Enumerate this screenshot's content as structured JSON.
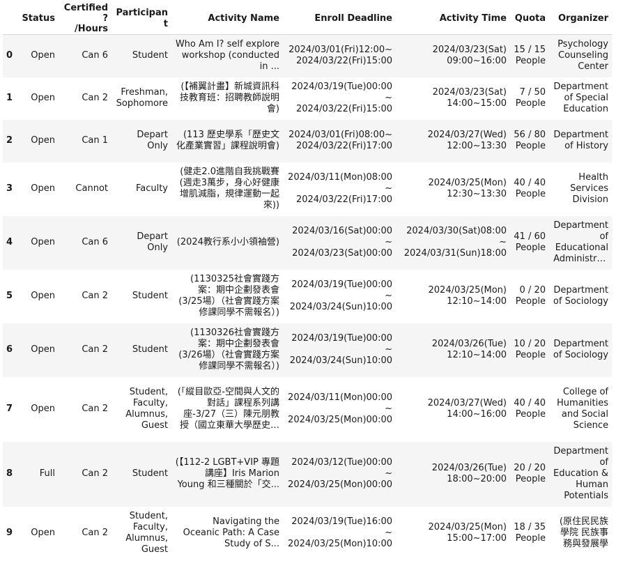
{
  "columns": [
    "",
    "Status",
    "Certified?\n/Hours",
    "Participant",
    "Activity Name",
    "Enroll Deadline",
    "Activity Time",
    "Quota",
    "Organizer"
  ],
  "rows": [
    {
      "idx": "0",
      "status": "Open",
      "cert": "Can 6",
      "participant": "Student",
      "activity": "Who Am I? self explore workshop (conducted in ...",
      "enroll": "2024/03/01(Fri)12:00~ 2024/03/22(Fri)15:00",
      "time": "2024/03/23(Sat) 09:00~16:00",
      "quota": "15 / 15 People",
      "organizer": "Psychology Counseling Center"
    },
    {
      "idx": "1",
      "status": "Open",
      "cert": "Can 2",
      "participant": "Freshman, Sophomore",
      "activity": "(【補翼計畫】新城資訊科技教育班：招聘教師說明會)",
      "enroll": "2024/03/19(Tue)00:00~ 2024/03/22(Fri)15:00",
      "time": "2024/03/23(Sat) 14:00~15:00",
      "quota": "7 / 50 People",
      "organizer": "Department of Special Education"
    },
    {
      "idx": "2",
      "status": "Open",
      "cert": "Can 1",
      "participant": "Depart Only",
      "activity": "(113 歷史學系「歷史文化產業實習」課程說明會)",
      "enroll": "2024/03/01(Fri)08:00~ 2024/03/22(Fri)17:00",
      "time": "2024/03/27(Wed) 12:00~13:30",
      "quota": "56 / 80 People",
      "organizer": "Department of History"
    },
    {
      "idx": "3",
      "status": "Open",
      "cert": "Cannot",
      "participant": "Faculty",
      "activity": "(健走2.0進階自我挑戰賽(週走3萬步，身心好健康增肌減脂，規律運動一起來))",
      "enroll": "2024/03/11(Mon)08:00~ 2024/03/22(Fri)17:00",
      "time": "2024/03/25(Mon) 12:30~13:30",
      "quota": "40 / 40 People",
      "organizer": "Health Services Division"
    },
    {
      "idx": "4",
      "status": "Open",
      "cert": "Can 6",
      "participant": "Depart Only",
      "activity": "(2024教行系小小領袖營)",
      "enroll": "2024/03/16(Sat)00:00~ 2024/03/23(Sat)00:00",
      "time": "2024/03/30(Sat)08:00~ 2024/03/31(Sun)18:00",
      "quota": "41 / 60 People",
      "organizer": "Department of Educational Administration and M..."
    },
    {
      "idx": "5",
      "status": "Open",
      "cert": "Can 2",
      "participant": "Student",
      "activity": "(1130325社會實踐方案：期中企劃發表會(3/25場）（社會實踐方案修課同學不需報名）)",
      "enroll": "2024/03/19(Tue)00:00~ 2024/03/24(Sun)10:00",
      "time": "2024/03/25(Mon) 12:10~14:00",
      "quota": "0 / 20 People",
      "organizer": "Department of Sociology"
    },
    {
      "idx": "6",
      "status": "Open",
      "cert": "Can 2",
      "participant": "Student",
      "activity": "(1130326社會實踐方案：期中企劃發表會(3/26場）（社會實踐方案修課同學不需報名）)",
      "enroll": "2024/03/19(Tue)00:00~ 2024/03/24(Sun)10:00",
      "time": "2024/03/26(Tue) 12:10~14:00",
      "quota": "10 / 20 People",
      "organizer": "Department of Sociology"
    },
    {
      "idx": "7",
      "status": "Open",
      "cert": "Can 2",
      "participant": "Student, Faculty, Alumnus, Guest",
      "activity": "(「縱目歐亞-空間與人文的對話」課程系列講座-3/27（三）陳元朋教授（國立東華大學歷史學系...",
      "enroll": "2024/03/11(Mon)00:00~ 2024/03/25(Mon)00:00",
      "time": "2024/03/27(Wed) 14:00~16:00",
      "quota": "40 / 40 People",
      "organizer": "College of Humanities and Social Science"
    },
    {
      "idx": "8",
      "status": "Full",
      "cert": "Can 2",
      "participant": "Student",
      "activity": "(【112-2 LGBT+VIP 專題講座】Iris Marion Young 和三種關於「交...",
      "enroll": "2024/03/12(Tue)00:00~ 2024/03/25(Mon)00:00",
      "time": "2024/03/26(Tue) 18:00~20:00",
      "quota": "20 / 20 People",
      "organizer": "Department of Education & Human Potentials Dev..."
    },
    {
      "idx": "9",
      "status": "Open",
      "cert": "Can 2",
      "participant": "Student, Faculty, Alumnus, Guest",
      "activity": "Navigating the Oceanic Path: A Case Study of S...",
      "enroll": "2024/03/19(Tue)16:00~ 2024/03/25(Mon)10:00",
      "time": "2024/03/25(Mon) 15:00~17:00",
      "quota": "18 / 35 People",
      "organizer": "(原住民民族學院 民族事務與發展學系)"
    }
  ]
}
